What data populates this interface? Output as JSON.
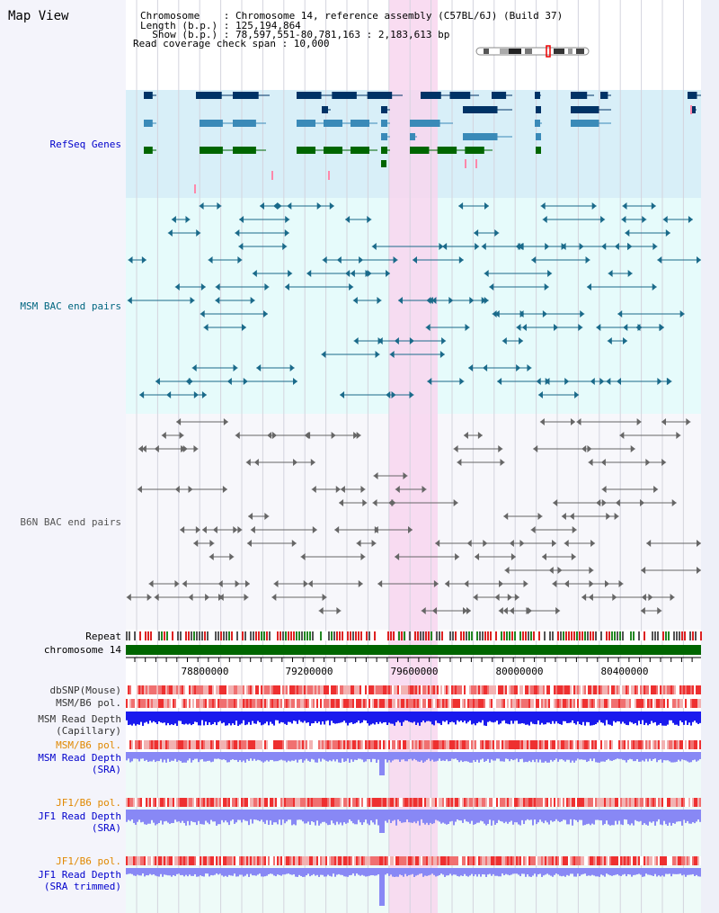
{
  "page": {
    "title": "Map View"
  },
  "header": {
    "chromosome_line": "Chromosome    : Chromosome 14, reference assembly (C57BL/6J) (Build 37)",
    "length_line": "Length (b.p.) : 125,194,864",
    "show_line": "  Show (b.p.) : 78,597,551-80,781,163 : 2,183,613 bp",
    "coverage_line": "Read coverage check span : 10,000"
  },
  "tracks": {
    "refseq": "RefSeq Genes",
    "msm_bac": "MSM BAC end pairs",
    "b6n_bac": "B6N BAC end pairs",
    "repeat": "Repeat",
    "chromosome": "chromosome 14",
    "dbsnp": "dbSNP(Mouse)",
    "msm_b6_pol": "MSM/B6 pol.",
    "msm_depth_cap_1": "MSM Read Depth",
    "msm_depth_cap_2": "(Capillary)",
    "msm_b6_pol_sra": "MSM/B6 pol.",
    "msm_depth_sra_1": "MSM Read Depth",
    "msm_depth_sra_2": "(SRA)",
    "jf1_pol_1": "JF1/B6 pol.",
    "jf1_depth_sra_1": "JF1 Read Depth",
    "jf1_depth_sra_2": "(SRA)",
    "jf1_pol_2": "JF1/B6 pol.",
    "jf1_depth_trim_1": "JF1 Read Depth",
    "jf1_depth_trim_2": "(SRA trimmed)"
  },
  "ruler": {
    "ticks": [
      "78800000",
      "79200000",
      "79600000",
      "80000000",
      "80400000"
    ]
  },
  "colors": {
    "refseq_bg": "#d8eff8",
    "msm_bg": "#e6fbfb",
    "highlight": "#f8d6ef",
    "chromosome": "#006600",
    "depth_blue": "#1a1aee",
    "depth_light": "#8888f5",
    "pol_red": "#ee2222",
    "label_blue": "#0000cc",
    "label_teal": "#006680",
    "label_orange": "#e08800"
  }
}
